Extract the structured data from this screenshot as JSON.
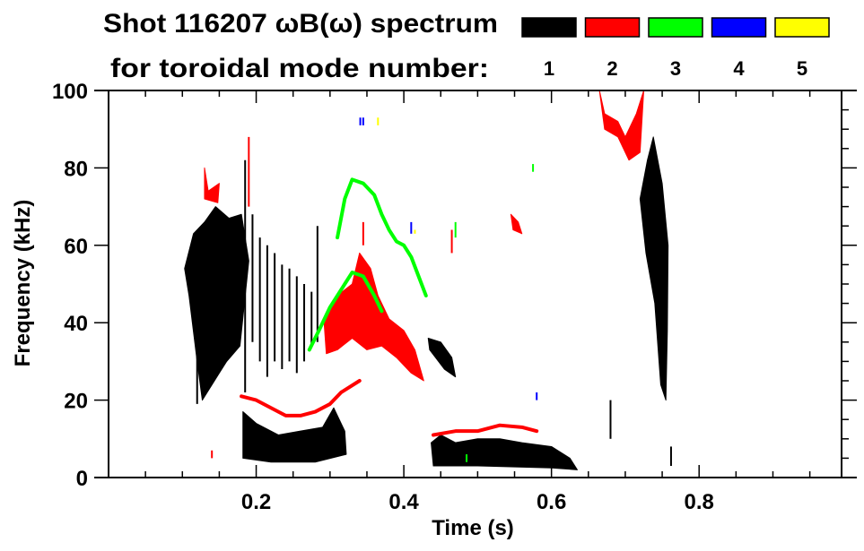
{
  "chart_data": {
    "type": "heatmap",
    "title_line1": "Shot 116207 ωB(ω) spectrum",
    "title_line2": "for toroidal mode number:",
    "xlabel": "Time (s)",
    "ylabel": "Frequency (kHz)",
    "xlim": [
      0,
      0.993
    ],
    "ylim": [
      0,
      100
    ],
    "x_major_ticks": [
      0.2,
      0.4,
      0.6,
      0.8
    ],
    "x_tick_labels": [
      "0.2",
      "0.4",
      "0.6",
      "0.8"
    ],
    "x_minor_step": 0.05,
    "y_major_ticks": [
      0,
      20,
      40,
      60,
      80,
      100
    ],
    "y_tick_labels": [
      "0",
      "20",
      "40",
      "60",
      "80",
      "100"
    ],
    "y_minor_step": 5,
    "legend": [
      {
        "label": "1",
        "color": "#000000"
      },
      {
        "label": "2",
        "color": "#ff0000"
      },
      {
        "label": "3",
        "color": "#00ff00"
      },
      {
        "label": "4",
        "color": "#0000ff"
      },
      {
        "label": "5",
        "color": "#ffff00"
      }
    ],
    "modes": [
      {
        "mode": 1,
        "color": "#000000",
        "regions": [
          [
            [
              0.103,
              54
            ],
            [
              0.115,
              63
            ],
            [
              0.13,
              66
            ],
            [
              0.145,
              70
            ],
            [
              0.163,
              67
            ],
            [
              0.18,
              68
            ],
            [
              0.19,
              56
            ],
            [
              0.178,
              34
            ],
            [
              0.16,
              30
            ],
            [
              0.15,
              27
            ],
            [
              0.127,
              20
            ],
            [
              0.12,
              30
            ],
            [
              0.109,
              47
            ]
          ],
          [
            [
              0.182,
              17
            ],
            [
              0.2,
              14
            ],
            [
              0.23,
              11
            ],
            [
              0.26,
              12
            ],
            [
              0.29,
              13
            ],
            [
              0.305,
              18
            ],
            [
              0.32,
              12
            ],
            [
              0.322,
              6
            ],
            [
              0.28,
              4
            ],
            [
              0.22,
              4
            ],
            [
              0.182,
              5
            ]
          ],
          [
            [
              0.433,
              36
            ],
            [
              0.45,
              35
            ],
            [
              0.465,
              31
            ],
            [
              0.47,
              26
            ],
            [
              0.455,
              28
            ],
            [
              0.435,
              33
            ]
          ],
          [
            [
              0.437,
              9
            ],
            [
              0.45,
              11
            ],
            [
              0.47,
              9
            ],
            [
              0.5,
              10
            ],
            [
              0.53,
              10
            ],
            [
              0.56,
              9
            ],
            [
              0.6,
              8
            ],
            [
              0.625,
              5
            ],
            [
              0.635,
              2
            ],
            [
              0.6,
              2.5
            ],
            [
              0.5,
              3
            ],
            [
              0.44,
              3
            ]
          ],
          [
            [
              0.72,
              72
            ],
            [
              0.73,
              82
            ],
            [
              0.738,
              88
            ],
            [
              0.75,
              76
            ],
            [
              0.758,
              60
            ],
            [
              0.757,
              38
            ],
            [
              0.755,
              20
            ],
            [
              0.748,
              24
            ],
            [
              0.74,
              45
            ],
            [
              0.728,
              58
            ]
          ]
        ],
        "streaks": [
          [
            0.185,
            22,
            82
          ],
          [
            0.195,
            35,
            68
          ],
          [
            0.205,
            30,
            62
          ],
          [
            0.215,
            26,
            60
          ],
          [
            0.225,
            30,
            58
          ],
          [
            0.235,
            28,
            55
          ],
          [
            0.245,
            30,
            54
          ],
          [
            0.255,
            27,
            52
          ],
          [
            0.265,
            30,
            50
          ],
          [
            0.275,
            34,
            48
          ],
          [
            0.283,
            35,
            65
          ],
          [
            0.12,
            19,
            40
          ],
          [
            0.68,
            10,
            20
          ],
          [
            0.762,
            3,
            8
          ]
        ]
      },
      {
        "mode": 2,
        "color": "#ff0000",
        "regions": [
          [
            [
              0.13,
              80
            ],
            [
              0.135,
              74
            ],
            [
              0.15,
              76
            ],
            [
              0.148,
              71
            ],
            [
              0.13,
              72
            ]
          ],
          [
            [
              0.292,
              40
            ],
            [
              0.31,
              47
            ],
            [
              0.33,
              50
            ],
            [
              0.34,
              58
            ],
            [
              0.355,
              54
            ],
            [
              0.365,
              47
            ],
            [
              0.38,
              41
            ],
            [
              0.4,
              38
            ],
            [
              0.415,
              33
            ],
            [
              0.427,
              25
            ],
            [
              0.41,
              27
            ],
            [
              0.39,
              31
            ],
            [
              0.37,
              34
            ],
            [
              0.35,
              33
            ],
            [
              0.33,
              36
            ],
            [
              0.31,
              33
            ],
            [
              0.295,
              32
            ]
          ],
          [
            [
              0.665,
              100
            ],
            [
              0.672,
              94
            ],
            [
              0.69,
              92
            ],
            [
              0.7,
              88
            ],
            [
              0.715,
              94
            ],
            [
              0.725,
              100
            ],
            [
              0.72,
              84
            ],
            [
              0.705,
              82
            ],
            [
              0.69,
              88
            ],
            [
              0.672,
              90
            ]
          ],
          [
            [
              0.545,
              68
            ],
            [
              0.555,
              66
            ],
            [
              0.56,
              63
            ],
            [
              0.548,
              64
            ]
          ]
        ],
        "lines": [
          [
            [
              0.18,
              21
            ],
            [
              0.2,
              20
            ],
            [
              0.22,
              18
            ],
            [
              0.24,
              16
            ],
            [
              0.26,
              16
            ],
            [
              0.28,
              17
            ],
            [
              0.3,
              19
            ],
            [
              0.315,
              22
            ],
            [
              0.34,
              25
            ]
          ],
          [
            [
              0.44,
              11
            ],
            [
              0.47,
              12
            ],
            [
              0.5,
              12
            ],
            [
              0.53,
              13.5
            ],
            [
              0.56,
              13
            ],
            [
              0.58,
              12
            ]
          ]
        ],
        "streaks": [
          [
            0.19,
            70,
            88
          ],
          [
            0.345,
            60,
            66
          ],
          [
            0.465,
            58,
            64
          ],
          [
            0.14,
            5,
            7
          ]
        ]
      },
      {
        "mode": 3,
        "color": "#00ff00",
        "lines": [
          [
            [
              0.31,
              62
            ],
            [
              0.32,
              72
            ],
            [
              0.33,
              77
            ],
            [
              0.345,
              76
            ],
            [
              0.36,
              73
            ],
            [
              0.37,
              68
            ],
            [
              0.38,
              64
            ],
            [
              0.39,
              61
            ],
            [
              0.4,
              60
            ],
            [
              0.41,
              57
            ],
            [
              0.42,
              52
            ],
            [
              0.43,
              47
            ]
          ],
          [
            [
              0.272,
              33
            ],
            [
              0.285,
              38
            ],
            [
              0.3,
              44
            ],
            [
              0.32,
              50
            ],
            [
              0.33,
              53
            ],
            [
              0.345,
              52
            ],
            [
              0.36,
              47
            ],
            [
              0.37,
              43
            ]
          ]
        ],
        "streaks": [
          [
            0.47,
            62,
            66
          ],
          [
            0.575,
            79,
            81
          ],
          [
            0.485,
            4,
            6
          ]
        ]
      },
      {
        "mode": 4,
        "color": "#0000ff",
        "streaks": [
          [
            0.341,
            91,
            93
          ],
          [
            0.345,
            91,
            93
          ],
          [
            0.41,
            63,
            66
          ],
          [
            0.58,
            20,
            22
          ]
        ]
      },
      {
        "mode": 5,
        "color": "#ffff00",
        "streaks": [
          [
            0.365,
            91,
            93
          ],
          [
            0.415,
            63,
            64
          ]
        ]
      }
    ]
  }
}
